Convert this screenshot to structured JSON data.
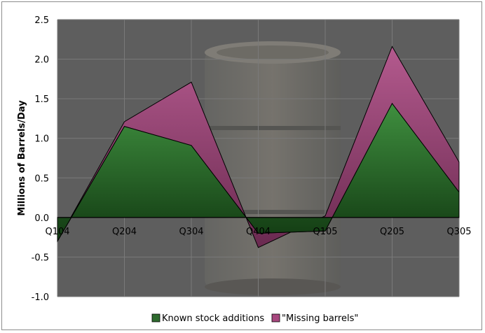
{
  "chart_data": {
    "type": "area",
    "stacked": true,
    "title": "",
    "xlabel": "",
    "ylabel": "Millions of Barrels/Day",
    "categories": [
      "Q104",
      "Q204",
      "Q304",
      "Q404",
      "Q105",
      "Q205",
      "Q305"
    ],
    "ylim": [
      -1.0,
      2.5
    ],
    "yticks": [
      "2.5",
      "2.0",
      "1.5",
      "1.0",
      "0.5",
      "0.0",
      "-0.5",
      "-1.0"
    ],
    "grid": true,
    "legend": "bottom",
    "series": [
      {
        "name": "Known stock additions",
        "values": [
          -0.3,
          1.15,
          0.91,
          -0.2,
          -0.17,
          1.44,
          0.32
        ],
        "color": "#2e6b2e"
      },
      {
        "name": "\"Missing barrels\"",
        "values": [
          0.0,
          0.06,
          0.8,
          -0.18,
          0.19,
          0.72,
          0.38
        ],
        "color": "#a8487f"
      }
    ],
    "background_color": "#5e5e5e"
  }
}
